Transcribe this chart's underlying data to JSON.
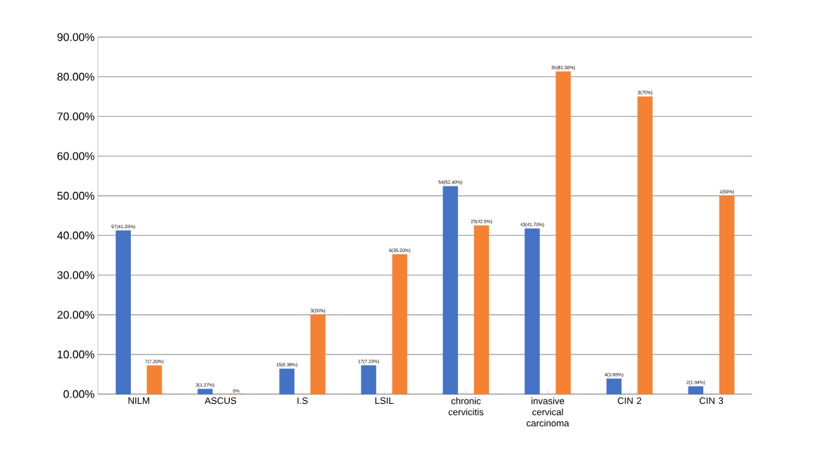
{
  "chart_data": {
    "type": "bar",
    "categories": [
      "NILM",
      "ASCUS",
      "I.S",
      "LSIL",
      "chronic cervicitis",
      "invasive cervical carcinoma",
      "CIN 2",
      "CIN 3"
    ],
    "series": [
      {
        "color": "#4472c4",
        "values": [
          41.2,
          1.27,
          6.38,
          7.23,
          52.4,
          41.7,
          3.88,
          1.94
        ],
        "value_labels": [
          "97(41.20%)",
          "3(1.27%)",
          "15(6.38%)",
          "17(7.23%)",
          "54(52.40%)",
          "43(41.70%)",
          "4(3.88%)",
          "2(1.94%)"
        ]
      },
      {
        "color": "#f58232",
        "values": [
          7.2,
          0,
          20,
          35.2,
          42.5,
          81.3,
          75,
          50
        ],
        "value_labels": [
          "7(7.20%)",
          "0%",
          "3(20%)",
          "6(35.20%)",
          "23(42.5%)",
          "35(81.30%)",
          "3(75%)",
          "1(50%)"
        ]
      }
    ],
    "ylim": [
      0,
      90
    ],
    "yticks": [
      {
        "value": 0,
        "label": "0.00%"
      },
      {
        "value": 10,
        "label": "10.00%"
      },
      {
        "value": 20,
        "label": "20.00%"
      },
      {
        "value": 30,
        "label": "30.00%"
      },
      {
        "value": 40,
        "label": "40.00%"
      },
      {
        "value": 50,
        "label": "50.00%"
      },
      {
        "value": 60,
        "label": "60.00%"
      },
      {
        "value": 70,
        "label": "70.00%"
      },
      {
        "value": 80,
        "label": "80.00%"
      },
      {
        "value": 90,
        "label": "90.00%"
      }
    ],
    "grid": "y",
    "legend": false
  }
}
